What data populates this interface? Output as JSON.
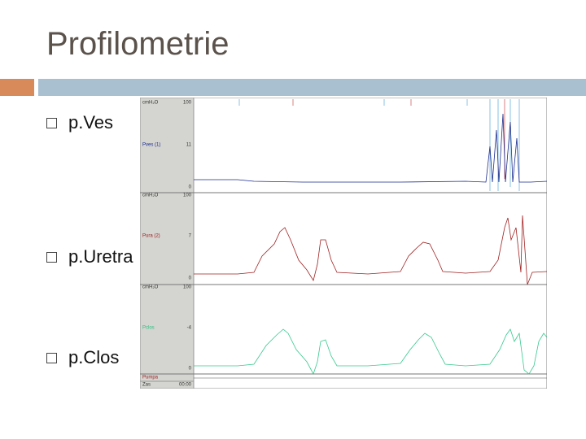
{
  "title": "Profilometrie",
  "bullets": [
    "p.Ves",
    "p.Uretra",
    "p.Clos"
  ],
  "screenshot": {
    "channels": [
      {
        "unit": "cmH₂O",
        "max": 100,
        "name": "Pves (1)",
        "current": 11,
        "min": 0
      },
      {
        "unit": "cmH₂O",
        "max": 100,
        "name": "Pura (2)",
        "current": 7,
        "min": 0
      },
      {
        "unit": "cmH₂O",
        "max": 100,
        "name": "Pclos",
        "current": -4,
        "min": 0
      }
    ],
    "footer": [
      "Pumpa",
      "Zas"
    ],
    "time_start": "00:00"
  }
}
